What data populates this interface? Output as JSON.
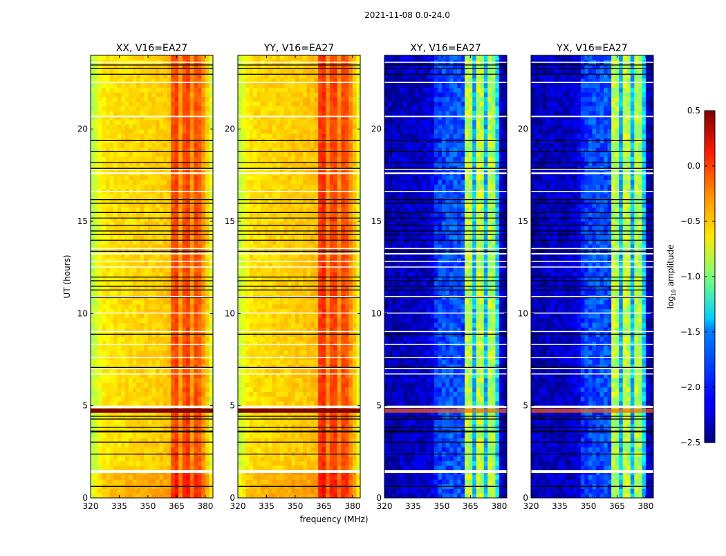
{
  "chart_data": {
    "type": "heatmap",
    "title": "2021-11-08 0.0-24.0",
    "xlabel": "frequency (MHz)",
    "ylabel": "UT (hours)",
    "xlim": [
      320,
      384
    ],
    "ylim": [
      0,
      24
    ],
    "xticks": [
      320,
      335,
      350,
      365,
      380
    ],
    "yticks": [
      0,
      5,
      10,
      15,
      20
    ],
    "grid": false,
    "colorbar": {
      "label_main": "log",
      "label_sub": "10",
      "label_rest": " amplitude",
      "range": [
        -2.5,
        0.5
      ],
      "ticks": [
        0.5,
        0.0,
        -0.5,
        -1.0,
        -1.5,
        -2.0,
        -2.5
      ],
      "tick_labels": [
        "0.5",
        "0.0",
        "−0.5",
        "−1.0",
        "−1.5",
        "−2.0",
        "−2.5"
      ],
      "colormap": "jet"
    },
    "freq_bin_start_mhz": [
      320,
      322,
      324,
      326,
      328,
      330,
      332,
      334,
      336,
      338,
      340,
      342,
      344,
      346,
      348,
      350,
      352,
      354,
      356,
      358,
      360,
      362,
      364,
      366,
      368,
      370,
      372,
      374,
      376,
      378,
      380,
      382
    ],
    "panels": [
      {
        "title": "XX, V16=EA27",
        "type": "parallel",
        "profile": [
          -0.85,
          -0.75,
          -0.65,
          -0.58,
          -0.56,
          -0.55,
          -0.54,
          -0.53,
          -0.53,
          -0.52,
          -0.52,
          -0.52,
          -0.51,
          -0.5,
          -0.5,
          -0.5,
          -0.5,
          -0.49,
          -0.48,
          -0.47,
          -0.45,
          -0.12,
          -0.05,
          -0.35,
          -0.12,
          -0.05,
          -0.32,
          -0.1,
          -0.15,
          -0.32,
          -0.48,
          -0.72
        ]
      },
      {
        "title": "YY, V16=EA27",
        "type": "parallel",
        "profile": [
          -0.8,
          -0.7,
          -0.6,
          -0.55,
          -0.54,
          -0.53,
          -0.52,
          -0.52,
          -0.51,
          -0.5,
          -0.5,
          -0.5,
          -0.49,
          -0.48,
          -0.48,
          -0.47,
          -0.47,
          -0.46,
          -0.45,
          -0.44,
          -0.42,
          -0.05,
          0.0,
          -0.3,
          -0.08,
          -0.05,
          -0.3,
          -0.08,
          -0.12,
          -0.3,
          -0.45,
          -0.7
        ]
      },
      {
        "title": "XY, V16=EA27",
        "type": "cross",
        "profile": [
          -2.35,
          -2.35,
          -2.35,
          -2.35,
          -2.3,
          -2.3,
          -2.3,
          -2.3,
          -2.3,
          -2.3,
          -2.28,
          -2.25,
          -2.2,
          -2.0,
          -1.95,
          -1.92,
          -1.9,
          -1.9,
          -1.88,
          -1.88,
          -1.9,
          -0.8,
          -0.85,
          -1.6,
          -0.8,
          -0.85,
          -1.6,
          -0.85,
          -0.9,
          -1.5,
          -2.3,
          -2.4
        ]
      },
      {
        "title": "YX, V16=EA27",
        "type": "cross",
        "profile": [
          -2.35,
          -2.35,
          -2.35,
          -2.35,
          -2.3,
          -2.3,
          -2.3,
          -2.3,
          -2.3,
          -2.3,
          -2.28,
          -2.25,
          -2.2,
          -2.0,
          -1.95,
          -1.92,
          -1.9,
          -1.9,
          -1.88,
          -1.88,
          -1.9,
          -0.8,
          -0.85,
          -1.6,
          -0.8,
          -0.85,
          -1.6,
          -0.85,
          -0.9,
          -1.5,
          -2.3,
          -2.4
        ]
      }
    ],
    "flagged_hours_white": [
      [
        1.35,
        1.5
      ],
      [
        4.88,
        5.0
      ],
      [
        6.7,
        6.75
      ],
      [
        7.0,
        7.05
      ],
      [
        7.6,
        7.65
      ],
      [
        8.3,
        8.35
      ],
      [
        9.0,
        9.05
      ],
      [
        10.0,
        10.05
      ],
      [
        10.85,
        10.95
      ],
      [
        12.5,
        12.55
      ],
      [
        12.8,
        12.85
      ],
      [
        13.2,
        13.28
      ],
      [
        13.5,
        13.55
      ],
      [
        16.6,
        16.65
      ],
      [
        17.55,
        17.65
      ],
      [
        17.8,
        17.85
      ],
      [
        20.65,
        20.72
      ],
      [
        22.5,
        22.56
      ],
      [
        23.6,
        23.65
      ]
    ],
    "black_lines_hours": [
      0.65,
      2.4,
      3.05,
      3.6,
      3.65,
      3.85,
      4.3,
      4.45,
      7.1,
      8.9,
      10.9,
      11.3,
      11.5,
      11.8,
      12.0,
      13.4,
      14.0,
      14.3,
      14.5,
      14.8,
      15.2,
      15.5,
      16.0,
      16.2,
      17.9,
      18.2,
      18.8,
      19.4,
      23.0,
      23.3,
      23.5
    ],
    "high_band_hours": [
      4.62,
      4.85
    ]
  }
}
